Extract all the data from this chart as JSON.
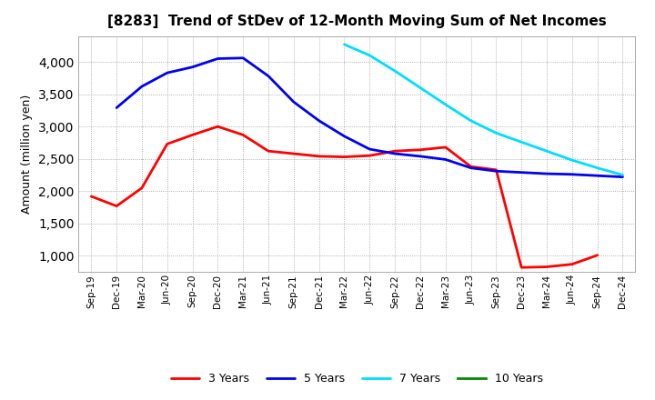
{
  "title": "[8283]  Trend of StDev of 12-Month Moving Sum of Net Incomes",
  "ylabel": "Amount (million yen)",
  "background_color": "#ffffff",
  "grid_color": "#999999",
  "x_labels": [
    "Sep-19",
    "Dec-19",
    "Mar-20",
    "Jun-20",
    "Sep-20",
    "Dec-20",
    "Mar-21",
    "Jun-21",
    "Sep-21",
    "Dec-21",
    "Mar-22",
    "Jun-22",
    "Sep-22",
    "Dec-22",
    "Mar-23",
    "Jun-23",
    "Sep-23",
    "Dec-23",
    "Mar-24",
    "Jun-24",
    "Sep-24",
    "Dec-24"
  ],
  "ylim": [
    750,
    4400
  ],
  "yticks": [
    1000,
    1500,
    2000,
    2500,
    3000,
    3500,
    4000
  ],
  "series": {
    "3 Years": {
      "color": "#ff0000",
      "x_indices": [
        0,
        1,
        2,
        3,
        4,
        5,
        6,
        7,
        8,
        9,
        10,
        11,
        12,
        13,
        14,
        15,
        16,
        17,
        18,
        19,
        20
      ],
      "values": [
        1920,
        1770,
        2050,
        2730,
        2870,
        3000,
        2870,
        2620,
        2580,
        2540,
        2530,
        2550,
        2620,
        2640,
        2680,
        2380,
        2330,
        820,
        830,
        870,
        1010
      ]
    },
    "5 Years": {
      "color": "#0000ee",
      "x_indices": [
        1,
        2,
        3,
        4,
        5,
        6,
        7,
        8,
        9,
        10,
        11,
        12,
        13,
        14,
        15,
        16,
        17,
        18,
        19,
        20,
        21
      ],
      "values": [
        3290,
        3620,
        3830,
        3920,
        4050,
        4060,
        3780,
        3380,
        3090,
        2850,
        2650,
        2580,
        2540,
        2490,
        2360,
        2310,
        2290,
        2270,
        2260,
        2240,
        2220
      ]
    },
    "7 Years": {
      "color": "#00ddff",
      "x_indices": [
        10,
        11,
        12,
        13,
        14,
        15,
        16,
        17,
        18,
        19,
        20,
        21
      ],
      "values": [
        4270,
        4100,
        3860,
        3600,
        3340,
        3090,
        2900,
        2760,
        2620,
        2480,
        2360,
        2250
      ]
    },
    "10 Years": {
      "color": "#008800",
      "x_indices": [],
      "values": []
    }
  },
  "legend_entries": [
    "3 Years",
    "5 Years",
    "7 Years",
    "10 Years"
  ],
  "legend_colors": [
    "#ff0000",
    "#0000ee",
    "#00ddff",
    "#008800"
  ]
}
